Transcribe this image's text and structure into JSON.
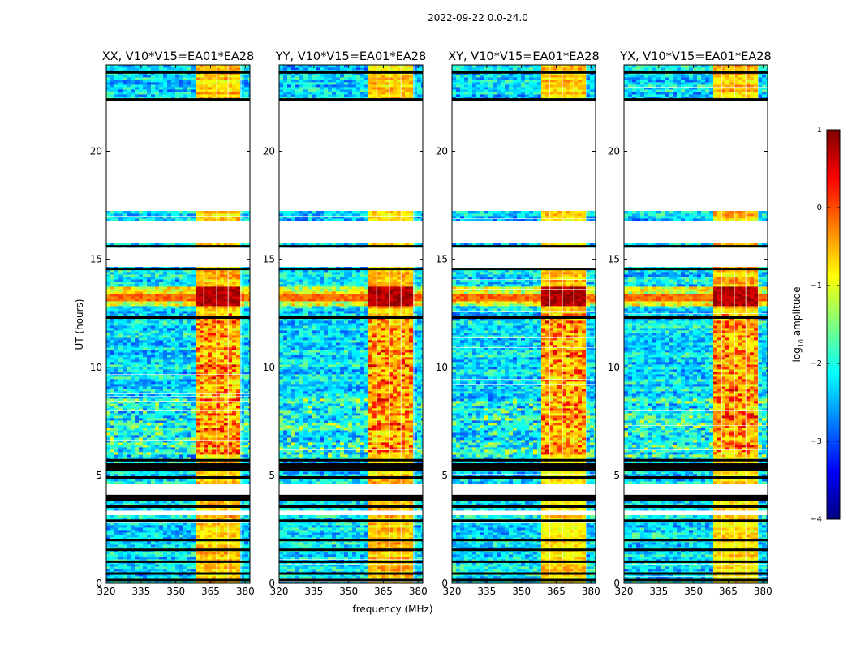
{
  "figure": {
    "suptitle": "2022-09-22 0.0-24.0",
    "xlabel": "frequency (MHz)",
    "ylabel": "UT (hours)"
  },
  "chart_data": [
    {
      "type": "heatmap",
      "title": "XX, V10*V15=EA01*EA28",
      "xlim": [
        320,
        382
      ],
      "ylim": [
        0,
        24
      ],
      "xticks": [
        "320",
        "335",
        "350",
        "365",
        "380"
      ],
      "yticks": [
        "0",
        "5",
        "10",
        "15",
        "20"
      ],
      "rfi_band_mhz": [
        359,
        378
      ],
      "rfi_channels_mhz": [
        360.5,
        366,
        371,
        376.5
      ],
      "blank_ranges_hours": [
        [
          17.2,
          22.4
        ],
        [
          15.8,
          16.8
        ],
        [
          14.6,
          15.5
        ],
        [
          3.1,
          3.4
        ],
        [
          4.1,
          4.6
        ]
      ],
      "flag_lines_hours": [
        0.15,
        0.45,
        1.0,
        1.55,
        2.0,
        2.9,
        3.55,
        3.9,
        4.9,
        5.5,
        5.7,
        12.3,
        14.55,
        15.6,
        22.4,
        23.65
      ]
    },
    {
      "type": "heatmap",
      "title": "YY, V10*V15=EA01*EA28",
      "xlim": [
        320,
        382
      ],
      "ylim": [
        0,
        24
      ],
      "xticks": [
        "320",
        "335",
        "350",
        "365",
        "380"
      ],
      "yticks": [
        "0",
        "5",
        "10",
        "15",
        "20"
      ],
      "rfi_band_mhz": [
        359,
        378
      ],
      "rfi_channels_mhz": [
        360.5,
        366,
        371,
        376.5
      ],
      "blank_ranges_hours": [
        [
          17.2,
          22.4
        ],
        [
          15.8,
          16.8
        ],
        [
          14.6,
          15.5
        ],
        [
          3.1,
          3.4
        ],
        [
          4.1,
          4.6
        ]
      ],
      "flag_lines_hours": [
        0.15,
        0.45,
        1.0,
        1.55,
        2.0,
        2.9,
        3.55,
        3.9,
        4.9,
        5.5,
        5.7,
        12.3,
        14.55,
        15.6,
        22.4,
        23.65
      ]
    },
    {
      "type": "heatmap",
      "title": "XY, V10*V15=EA01*EA28",
      "xlim": [
        320,
        382
      ],
      "ylim": [
        0,
        24
      ],
      "xticks": [
        "320",
        "335",
        "350",
        "365",
        "380"
      ],
      "yticks": [
        "0",
        "5",
        "10",
        "15",
        "20"
      ],
      "rfi_band_mhz": [
        359,
        378
      ],
      "rfi_channels_mhz": [
        360.5,
        366,
        371,
        376.5
      ],
      "blank_ranges_hours": [
        [
          17.2,
          22.4
        ],
        [
          15.8,
          16.8
        ],
        [
          14.6,
          15.5
        ],
        [
          3.1,
          3.4
        ],
        [
          4.1,
          4.6
        ]
      ],
      "flag_lines_hours": [
        0.15,
        0.45,
        1.0,
        1.55,
        2.0,
        2.9,
        3.55,
        3.9,
        4.9,
        5.5,
        5.7,
        12.3,
        14.55,
        15.6,
        22.4,
        23.65
      ]
    },
    {
      "type": "heatmap",
      "title": "YX, V10*V15=EA01*EA28",
      "xlim": [
        320,
        382
      ],
      "ylim": [
        0,
        24
      ],
      "xticks": [
        "320",
        "335",
        "350",
        "365",
        "380"
      ],
      "yticks": [
        "0",
        "5",
        "10",
        "15",
        "20"
      ],
      "rfi_band_mhz": [
        359,
        378
      ],
      "rfi_channels_mhz": [
        360.5,
        366,
        371,
        376.5
      ],
      "blank_ranges_hours": [
        [
          17.2,
          22.4
        ],
        [
          15.8,
          16.8
        ],
        [
          14.6,
          15.5
        ],
        [
          3.1,
          3.4
        ],
        [
          4.1,
          4.6
        ]
      ],
      "flag_lines_hours": [
        0.15,
        0.45,
        1.0,
        1.55,
        2.0,
        2.9,
        3.55,
        3.9,
        4.9,
        5.5,
        5.7,
        12.3,
        14.55,
        15.6,
        22.4,
        23.65
      ]
    }
  ],
  "colorbar": {
    "label_main": "log",
    "label_sub": "10",
    "label_rest": " amplitude",
    "range": [
      -4,
      1
    ],
    "ticks": [
      "1",
      "0",
      "−1",
      "−2",
      "−3",
      "−4"
    ],
    "colormap": "jet",
    "colors": [
      "#00007f",
      "#0000ff",
      "#007fff",
      "#00ffff",
      "#7fff7f",
      "#ffff00",
      "#ff7f00",
      "#ff0000",
      "#7f0000"
    ]
  }
}
